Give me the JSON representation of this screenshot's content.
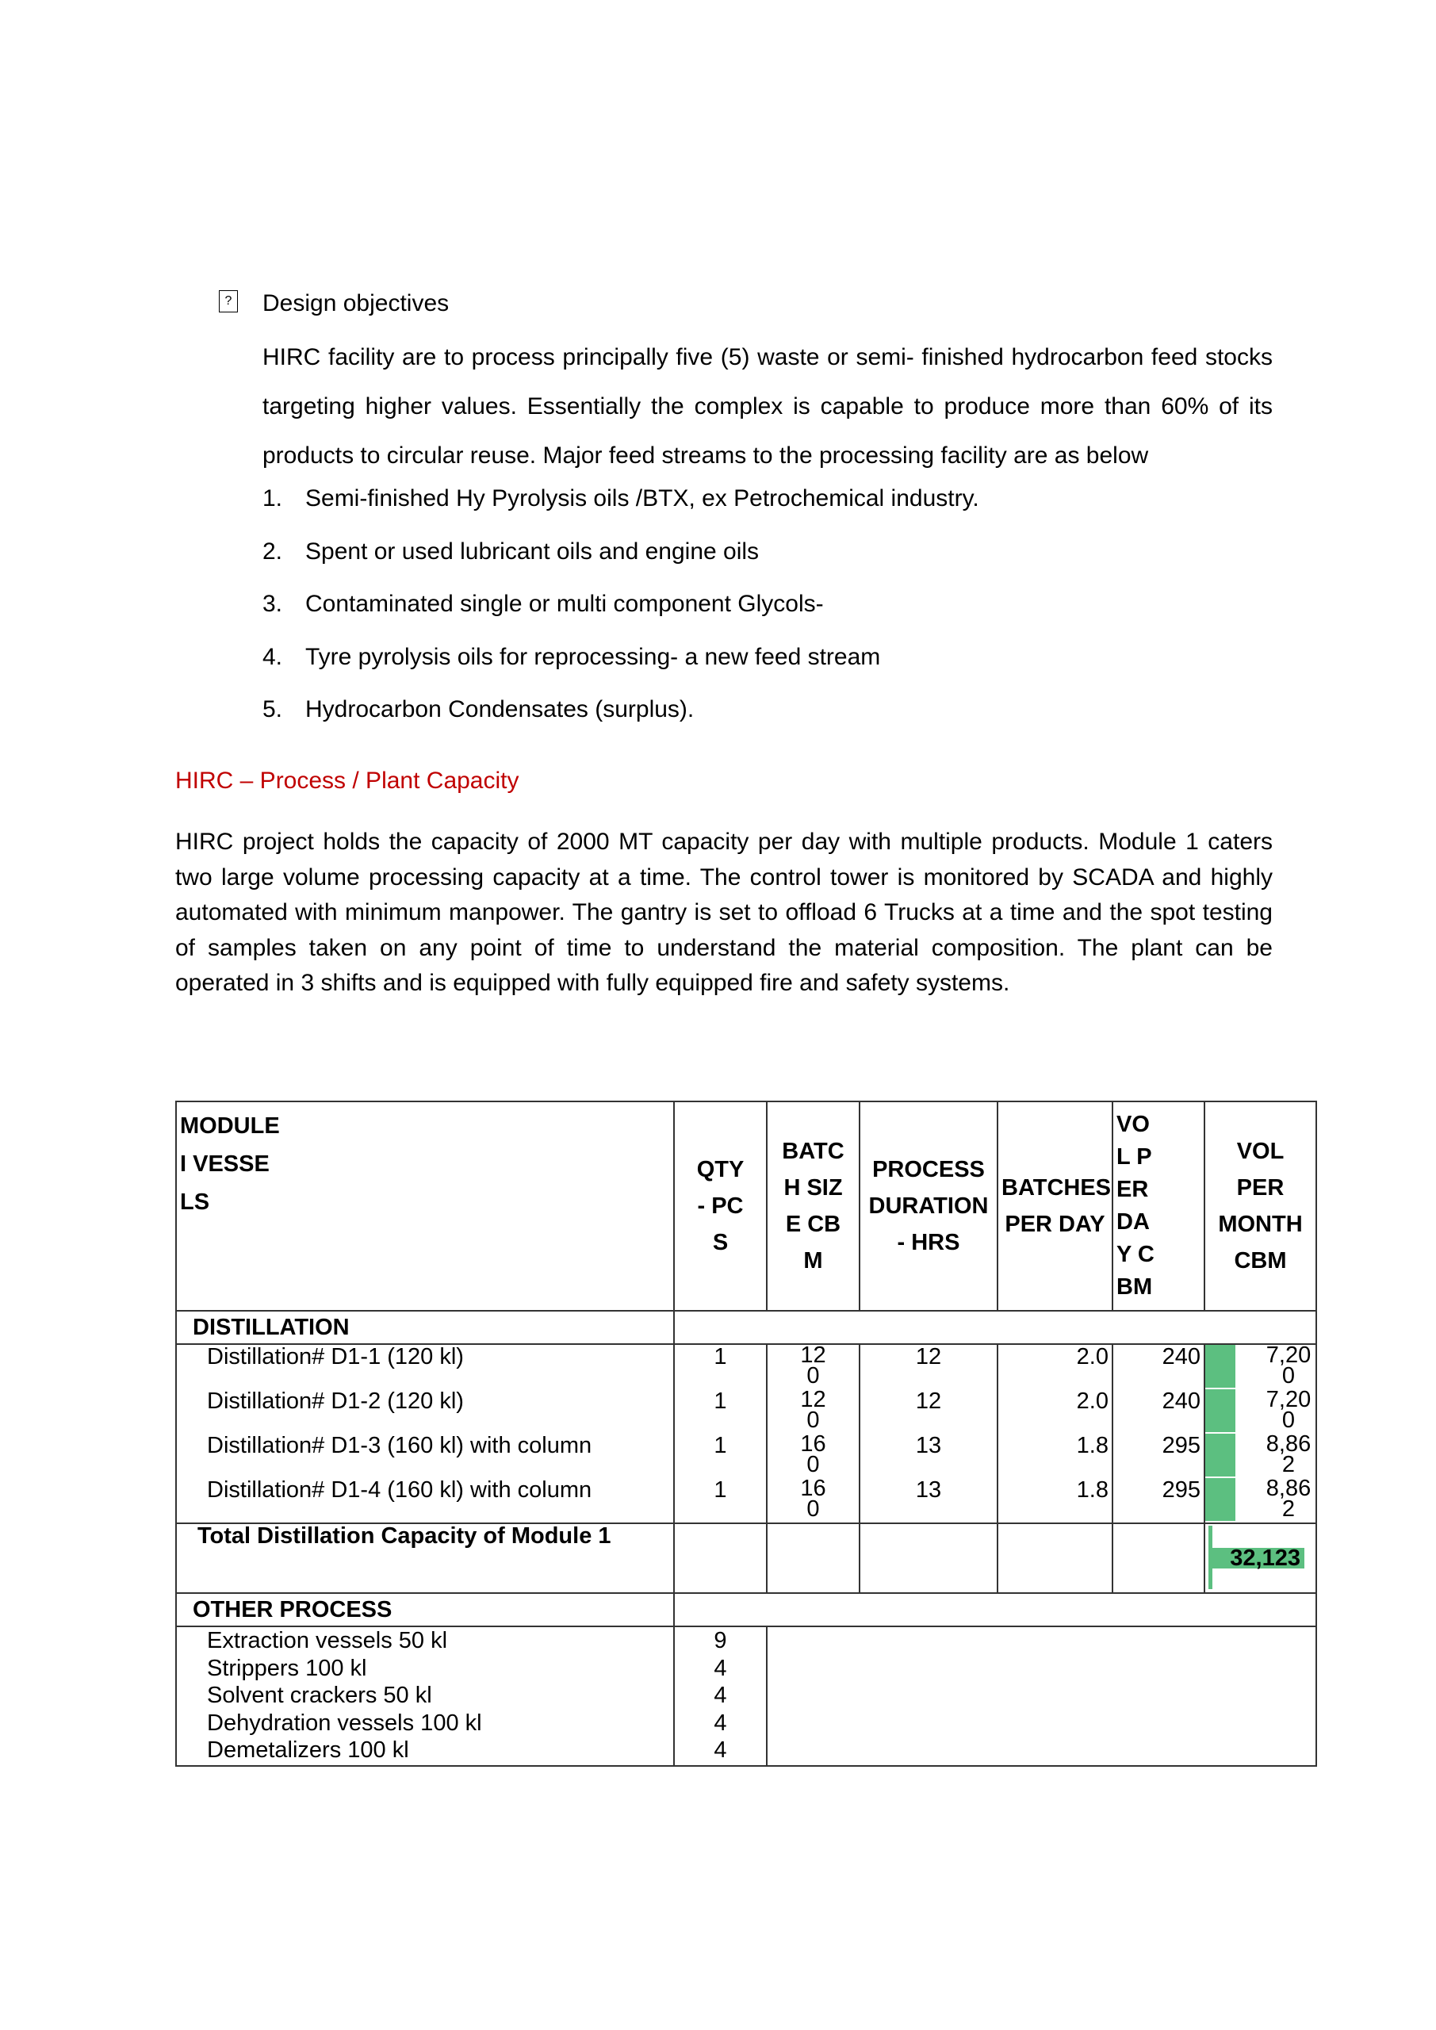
{
  "objectives": {
    "bullet_icon": "missing-glyph-icon",
    "title": "Design objectives",
    "paragraph": "HIRC facility are to process principally five (5) waste or semi- finished hydrocarbon feed stocks targeting higher values. Essentially the complex is capable to produce more than 60% of its products to circular reuse. Major feed streams to the processing facility are as below",
    "list": [
      {
        "num": "1.",
        "text": "Semi-finished Hy Pyrolysis oils /BTX, ex Petrochemical industry."
      },
      {
        "num": "2.",
        "text": "Spent or used lubricant oils and engine oils"
      },
      {
        "num": "3.",
        "text": "Contaminated single or multi component Glycols-"
      },
      {
        "num": "4.",
        "text": "Tyre pyrolysis oils for reprocessing- a new feed stream"
      },
      {
        "num": "5.",
        "text": "Hydrocarbon Condensates (surplus)."
      }
    ]
  },
  "capacity": {
    "heading": "HIRC – Process / Plant Capacity",
    "heading_color": "#c00000",
    "paragraph": "HIRC project holds the capacity of 2000 MT capacity per day with multiple products. Module 1 caters two large volume processing capacity at a time. The control tower is monitored by SCADA and highly automated with minimum manpower. The gantry is set to offload 6 Trucks at a time and the spot testing of samples taken on any point of time to understand the material composition. The plant can be operated in 3 shifts and is equipped with fully equipped fire and safety systems."
  },
  "table": {
    "headers": [
      "MODULE I VESSELS",
      "QTY - PCS",
      "BATCH SIZE CBM",
      "PROCESS DURATION - HRS",
      "BATCHES PER DAY",
      "VOL PER DAY CBM",
      "VOL PER MONTH CBM"
    ],
    "section_distillation": "DISTILLATION",
    "rows": [
      {
        "name": "Distillation# D1-1 (120 kl)",
        "qty": "1",
        "batch": "120",
        "duration": "12",
        "batches": "2.0",
        "vol_day": "240",
        "vol_month": "7,200"
      },
      {
        "name": "Distillation# D1-2 (120 kl)",
        "qty": "1",
        "batch": "120",
        "duration": "12",
        "batches": "2.0",
        "vol_day": "240",
        "vol_month": "7,200"
      },
      {
        "name": "Distillation# D1-3 (160 kl) with column",
        "qty": "1",
        "batch": "160",
        "duration": "13",
        "batches": "1.8",
        "vol_day": "295",
        "vol_month": "8,862"
      },
      {
        "name": "Distillation# D1-4 (160 kl) with column",
        "qty": "1",
        "batch": "160",
        "duration": "13",
        "batches": "1.8",
        "vol_day": "295",
        "vol_month": "8,862"
      }
    ],
    "total_label": "Total Distillation Capacity of Module 1",
    "total_value": "32,123",
    "highlight_color": "#5cbf80",
    "section_other": "OTHER PROCESS",
    "other": [
      {
        "name": "Extraction vessels 50 kl",
        "qty": "9"
      },
      {
        "name": "Strippers 100 kl",
        "qty": "4"
      },
      {
        "name": "Solvent crackers 50 kl",
        "qty": "4"
      },
      {
        "name": "Dehydration vessels 100 kl",
        "qty": "4"
      },
      {
        "name": "Demetalizers 100 kl",
        "qty": "4"
      }
    ]
  }
}
